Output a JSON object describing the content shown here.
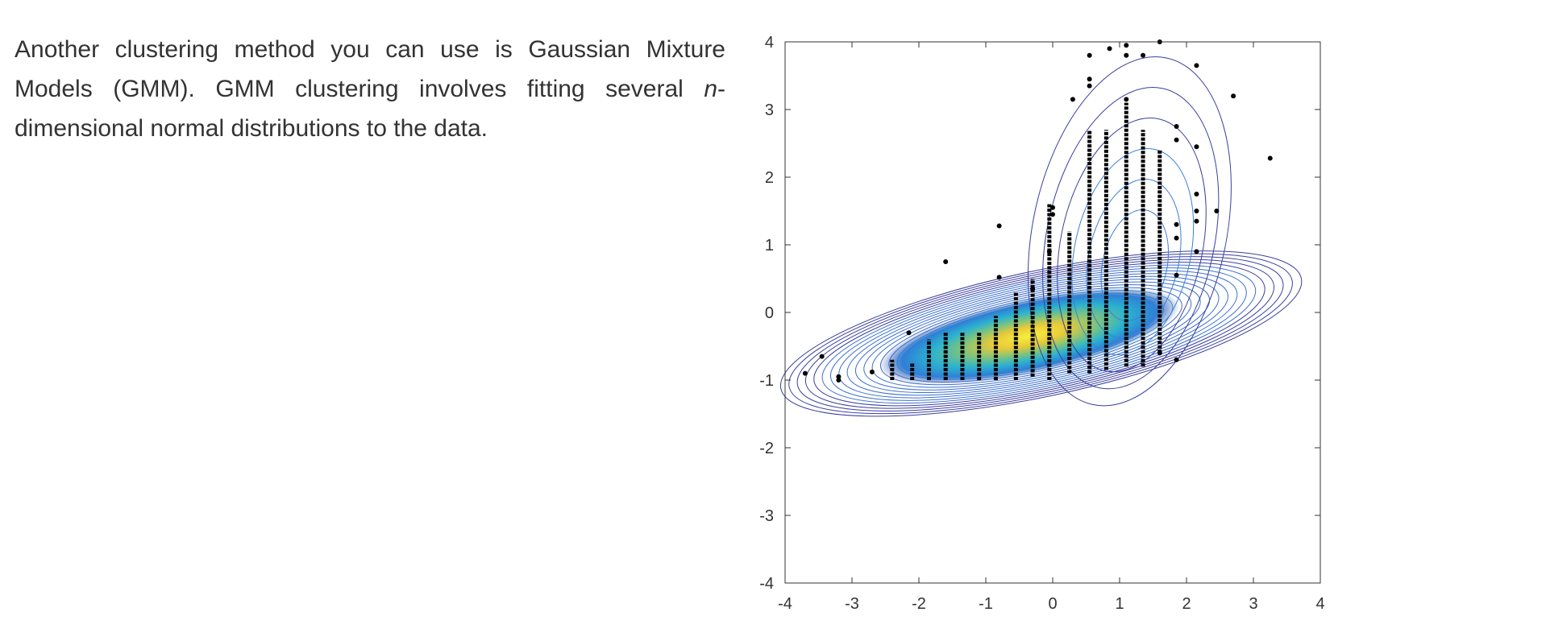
{
  "text": {
    "part1": "Another clustering method you can use is Gaussian Mixture Models (GMM). GMM clustering involves fitting several ",
    "italic": "n",
    "part2": "-dimensional normal distributions to the data."
  },
  "chart_data": {
    "type": "scatter",
    "title": "",
    "xlabel": "",
    "ylabel": "",
    "xlim": [
      -4,
      4
    ],
    "ylim": [
      -4,
      4
    ],
    "xticks": [
      "-4",
      "-3",
      "-2",
      "-1",
      "0",
      "1",
      "2",
      "3",
      "4"
    ],
    "yticks": [
      "-4",
      "-3",
      "-2",
      "-1",
      "0",
      "1",
      "2",
      "3",
      "4"
    ],
    "grid": false,
    "overlay": "gmm density contours (filled, parula colormap)",
    "colors": {
      "contour_outer": "#3b3f9e",
      "contour_inner": "#2a9fd6",
      "peak": "#f5e83a",
      "points": "#000000",
      "axis": "#333333"
    },
    "columns": [
      {
        "x": -2.4,
        "y_min": -1.0,
        "y_max": -0.7
      },
      {
        "x": -2.1,
        "y_min": -1.0,
        "y_max": -0.75
      },
      {
        "x": -1.85,
        "y_min": -1.0,
        "y_max": -0.4
      },
      {
        "x": -1.6,
        "y_min": -1.0,
        "y_max": -0.3
      },
      {
        "x": -1.35,
        "y_min": -1.0,
        "y_max": -0.3
      },
      {
        "x": -1.1,
        "y_min": -1.0,
        "y_max": -0.3
      },
      {
        "x": -0.85,
        "y_min": -1.0,
        "y_max": -0.05
      },
      {
        "x": -0.55,
        "y_min": -1.0,
        "y_max": 0.3
      },
      {
        "x": -0.3,
        "y_min": -0.95,
        "y_max": 0.5
      },
      {
        "x": -0.05,
        "y_min": -1.0,
        "y_max": 1.6
      },
      {
        "x": 0.25,
        "y_min": -0.9,
        "y_max": 1.2
      },
      {
        "x": 0.55,
        "y_min": -0.9,
        "y_max": 2.7
      },
      {
        "x": 0.8,
        "y_min": -0.85,
        "y_max": 2.7
      },
      {
        "x": 1.1,
        "y_min": -0.8,
        "y_max": 3.1
      },
      {
        "x": 1.35,
        "y_min": -0.8,
        "y_max": 2.7
      },
      {
        "x": 1.6,
        "y_min": -0.6,
        "y_max": 2.4
      }
    ],
    "points": [
      {
        "x": -3.7,
        "y": -0.9
      },
      {
        "x": -3.45,
        "y": -0.65
      },
      {
        "x": -3.2,
        "y": -0.95
      },
      {
        "x": -3.2,
        "y": -1.0
      },
      {
        "x": -2.7,
        "y": -0.88
      },
      {
        "x": -2.15,
        "y": -0.3
      },
      {
        "x": -1.6,
        "y": 0.75
      },
      {
        "x": -0.8,
        "y": 1.28
      },
      {
        "x": -0.8,
        "y": 0.52
      },
      {
        "x": -0.3,
        "y": 0.35
      },
      {
        "x": 0.3,
        "y": 3.15
      },
      {
        "x": 0.55,
        "y": 3.8
      },
      {
        "x": 0.55,
        "y": 3.45
      },
      {
        "x": 0.55,
        "y": 3.35
      },
      {
        "x": 0.85,
        "y": 3.9
      },
      {
        "x": 1.1,
        "y": 3.95
      },
      {
        "x": 1.1,
        "y": 3.15
      },
      {
        "x": 1.1,
        "y": 3.8
      },
      {
        "x": 1.35,
        "y": 3.8
      },
      {
        "x": 1.6,
        "y": 4.0
      },
      {
        "x": 1.85,
        "y": 2.75
      },
      {
        "x": 1.85,
        "y": 2.55
      },
      {
        "x": 1.85,
        "y": 1.3
      },
      {
        "x": 1.85,
        "y": 1.1
      },
      {
        "x": 1.85,
        "y": 0.55
      },
      {
        "x": 1.85,
        "y": -0.7
      },
      {
        "x": 1.6,
        "y": -0.6
      },
      {
        "x": 2.15,
        "y": 3.65
      },
      {
        "x": 2.15,
        "y": 2.45
      },
      {
        "x": 2.15,
        "y": 1.75
      },
      {
        "x": 2.15,
        "y": 1.5
      },
      {
        "x": 2.15,
        "y": 1.35
      },
      {
        "x": 2.15,
        "y": 0.9
      },
      {
        "x": 2.45,
        "y": 1.5
      },
      {
        "x": 2.7,
        "y": 3.2
      },
      {
        "x": 3.25,
        "y": 2.28
      },
      {
        "x": 0.0,
        "y": 1.55
      },
      {
        "x": 0.0,
        "y": 1.45
      },
      {
        "x": -0.05,
        "y": 0.9
      }
    ]
  }
}
